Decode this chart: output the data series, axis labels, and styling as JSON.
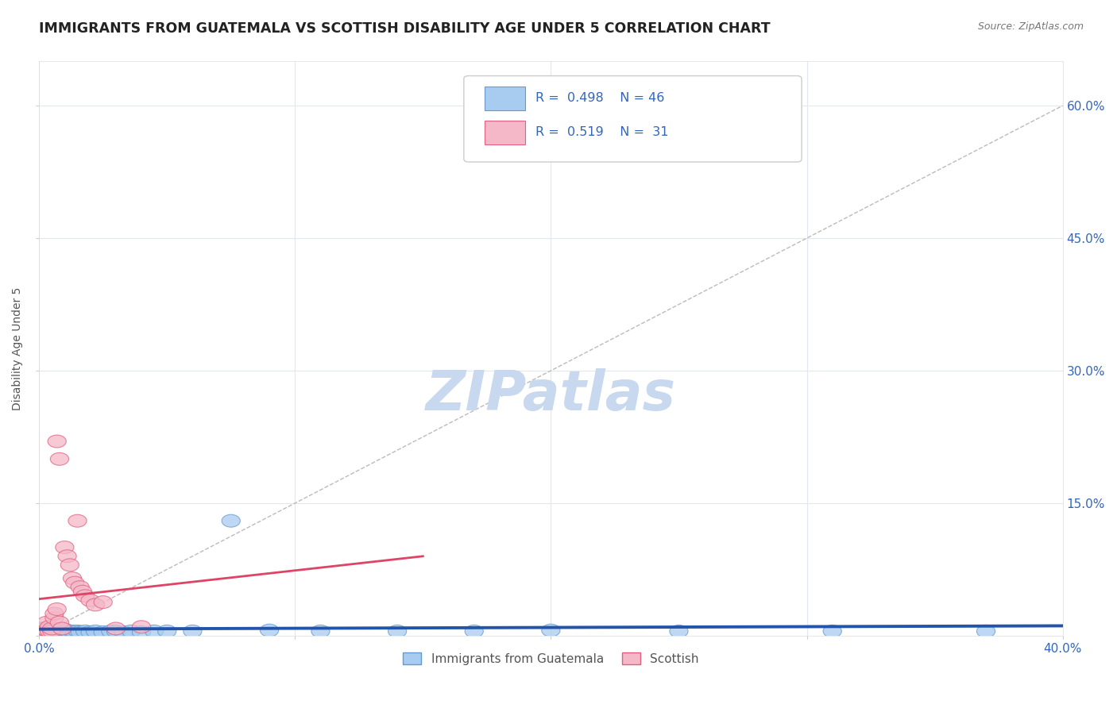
{
  "title": "IMMIGRANTS FROM GUATEMALA VS SCOTTISH DISABILITY AGE UNDER 5 CORRELATION CHART",
  "source": "Source: ZipAtlas.com",
  "ylabel": "Disability Age Under 5",
  "xlim": [
    0.0,
    0.4
  ],
  "ylim": [
    0.0,
    0.65
  ],
  "xticks": [
    0.0,
    0.1,
    0.2,
    0.3,
    0.4
  ],
  "xtick_labels": [
    "0.0%",
    "",
    "",
    "",
    "40.0%"
  ],
  "ytick_labels_right": [
    "",
    "15.0%",
    "30.0%",
    "45.0%",
    "60.0%"
  ],
  "yticks": [
    0.0,
    0.15,
    0.3,
    0.45,
    0.6
  ],
  "color_blue": "#A8CCF0",
  "color_pink": "#F4B8C8",
  "edge_blue": "#6699CC",
  "edge_pink": "#E06080",
  "line_blue": "#2255AA",
  "line_pink": "#DD4466",
  "diag_color": "#BBBBBB",
  "watermark": "ZIPatlas",
  "watermark_color": "#C8D8EE",
  "grid_color": "#E0E8F0",
  "text_color": "#3366BB",
  "title_color": "#222222",
  "blue_points_x": [
    0.001,
    0.002,
    0.002,
    0.003,
    0.003,
    0.004,
    0.004,
    0.005,
    0.005,
    0.005,
    0.006,
    0.006,
    0.007,
    0.007,
    0.008,
    0.008,
    0.009,
    0.01,
    0.01,
    0.011,
    0.012,
    0.013,
    0.014,
    0.015,
    0.016,
    0.018,
    0.02,
    0.022,
    0.025,
    0.028,
    0.03,
    0.033,
    0.036,
    0.04,
    0.045,
    0.05,
    0.06,
    0.075,
    0.09,
    0.11,
    0.14,
    0.17,
    0.2,
    0.25,
    0.31,
    0.37
  ],
  "blue_points_y": [
    0.005,
    0.005,
    0.008,
    0.005,
    0.007,
    0.005,
    0.007,
    0.003,
    0.006,
    0.005,
    0.005,
    0.007,
    0.005,
    0.007,
    0.005,
    0.006,
    0.004,
    0.005,
    0.007,
    0.005,
    0.004,
    0.005,
    0.004,
    0.005,
    0.004,
    0.005,
    0.004,
    0.005,
    0.004,
    0.005,
    0.005,
    0.004,
    0.005,
    0.004,
    0.005,
    0.005,
    0.005,
    0.13,
    0.006,
    0.005,
    0.005,
    0.005,
    0.006,
    0.005,
    0.005,
    0.005
  ],
  "pink_points_x": [
    0.001,
    0.001,
    0.002,
    0.002,
    0.003,
    0.003,
    0.004,
    0.004,
    0.005,
    0.005,
    0.006,
    0.006,
    0.007,
    0.007,
    0.008,
    0.008,
    0.009,
    0.01,
    0.011,
    0.012,
    0.013,
    0.014,
    0.015,
    0.016,
    0.017,
    0.018,
    0.02,
    0.022,
    0.025,
    0.03,
    0.04
  ],
  "pink_points_y": [
    0.005,
    0.008,
    0.005,
    0.007,
    0.006,
    0.015,
    0.005,
    0.01,
    0.005,
    0.008,
    0.02,
    0.025,
    0.22,
    0.03,
    0.015,
    0.2,
    0.008,
    0.1,
    0.09,
    0.08,
    0.065,
    0.06,
    0.13,
    0.055,
    0.05,
    0.045,
    0.04,
    0.035,
    0.038,
    0.008,
    0.01
  ]
}
